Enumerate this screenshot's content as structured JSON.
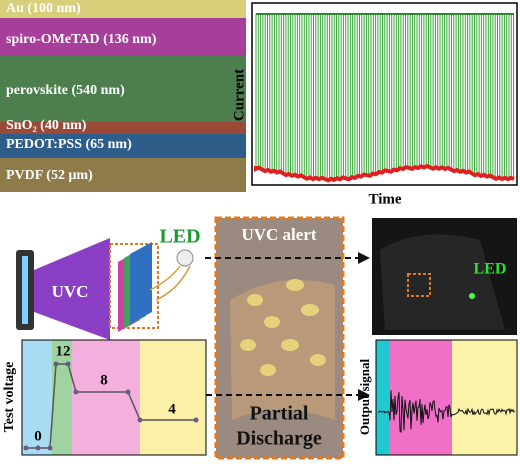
{
  "cross_section": {
    "layers": [
      "Au (100 nm)",
      "spiro-OMeTAD (136 nm)",
      "perovskite (540 nm)",
      "SnO₂ (40 nm)",
      "PEDOT:PSS (65 nm)",
      "PVDF (52 μm)"
    ]
  },
  "current_plot": {
    "y_label": "Current",
    "x_label": "Time"
  },
  "schematic": {
    "led_label": "LED",
    "uvc_label": "UVC"
  },
  "voltage_plot": {
    "y_label": "Test voltage",
    "levels": [
      "0",
      "12",
      "8",
      "4"
    ]
  },
  "photo": {
    "top_label": "UVC alert",
    "bottom_label": [
      "Partial",
      "Discharge"
    ]
  },
  "led_photo": {
    "label": "LED"
  },
  "output_plot": {
    "y_label": "Output signal"
  }
}
